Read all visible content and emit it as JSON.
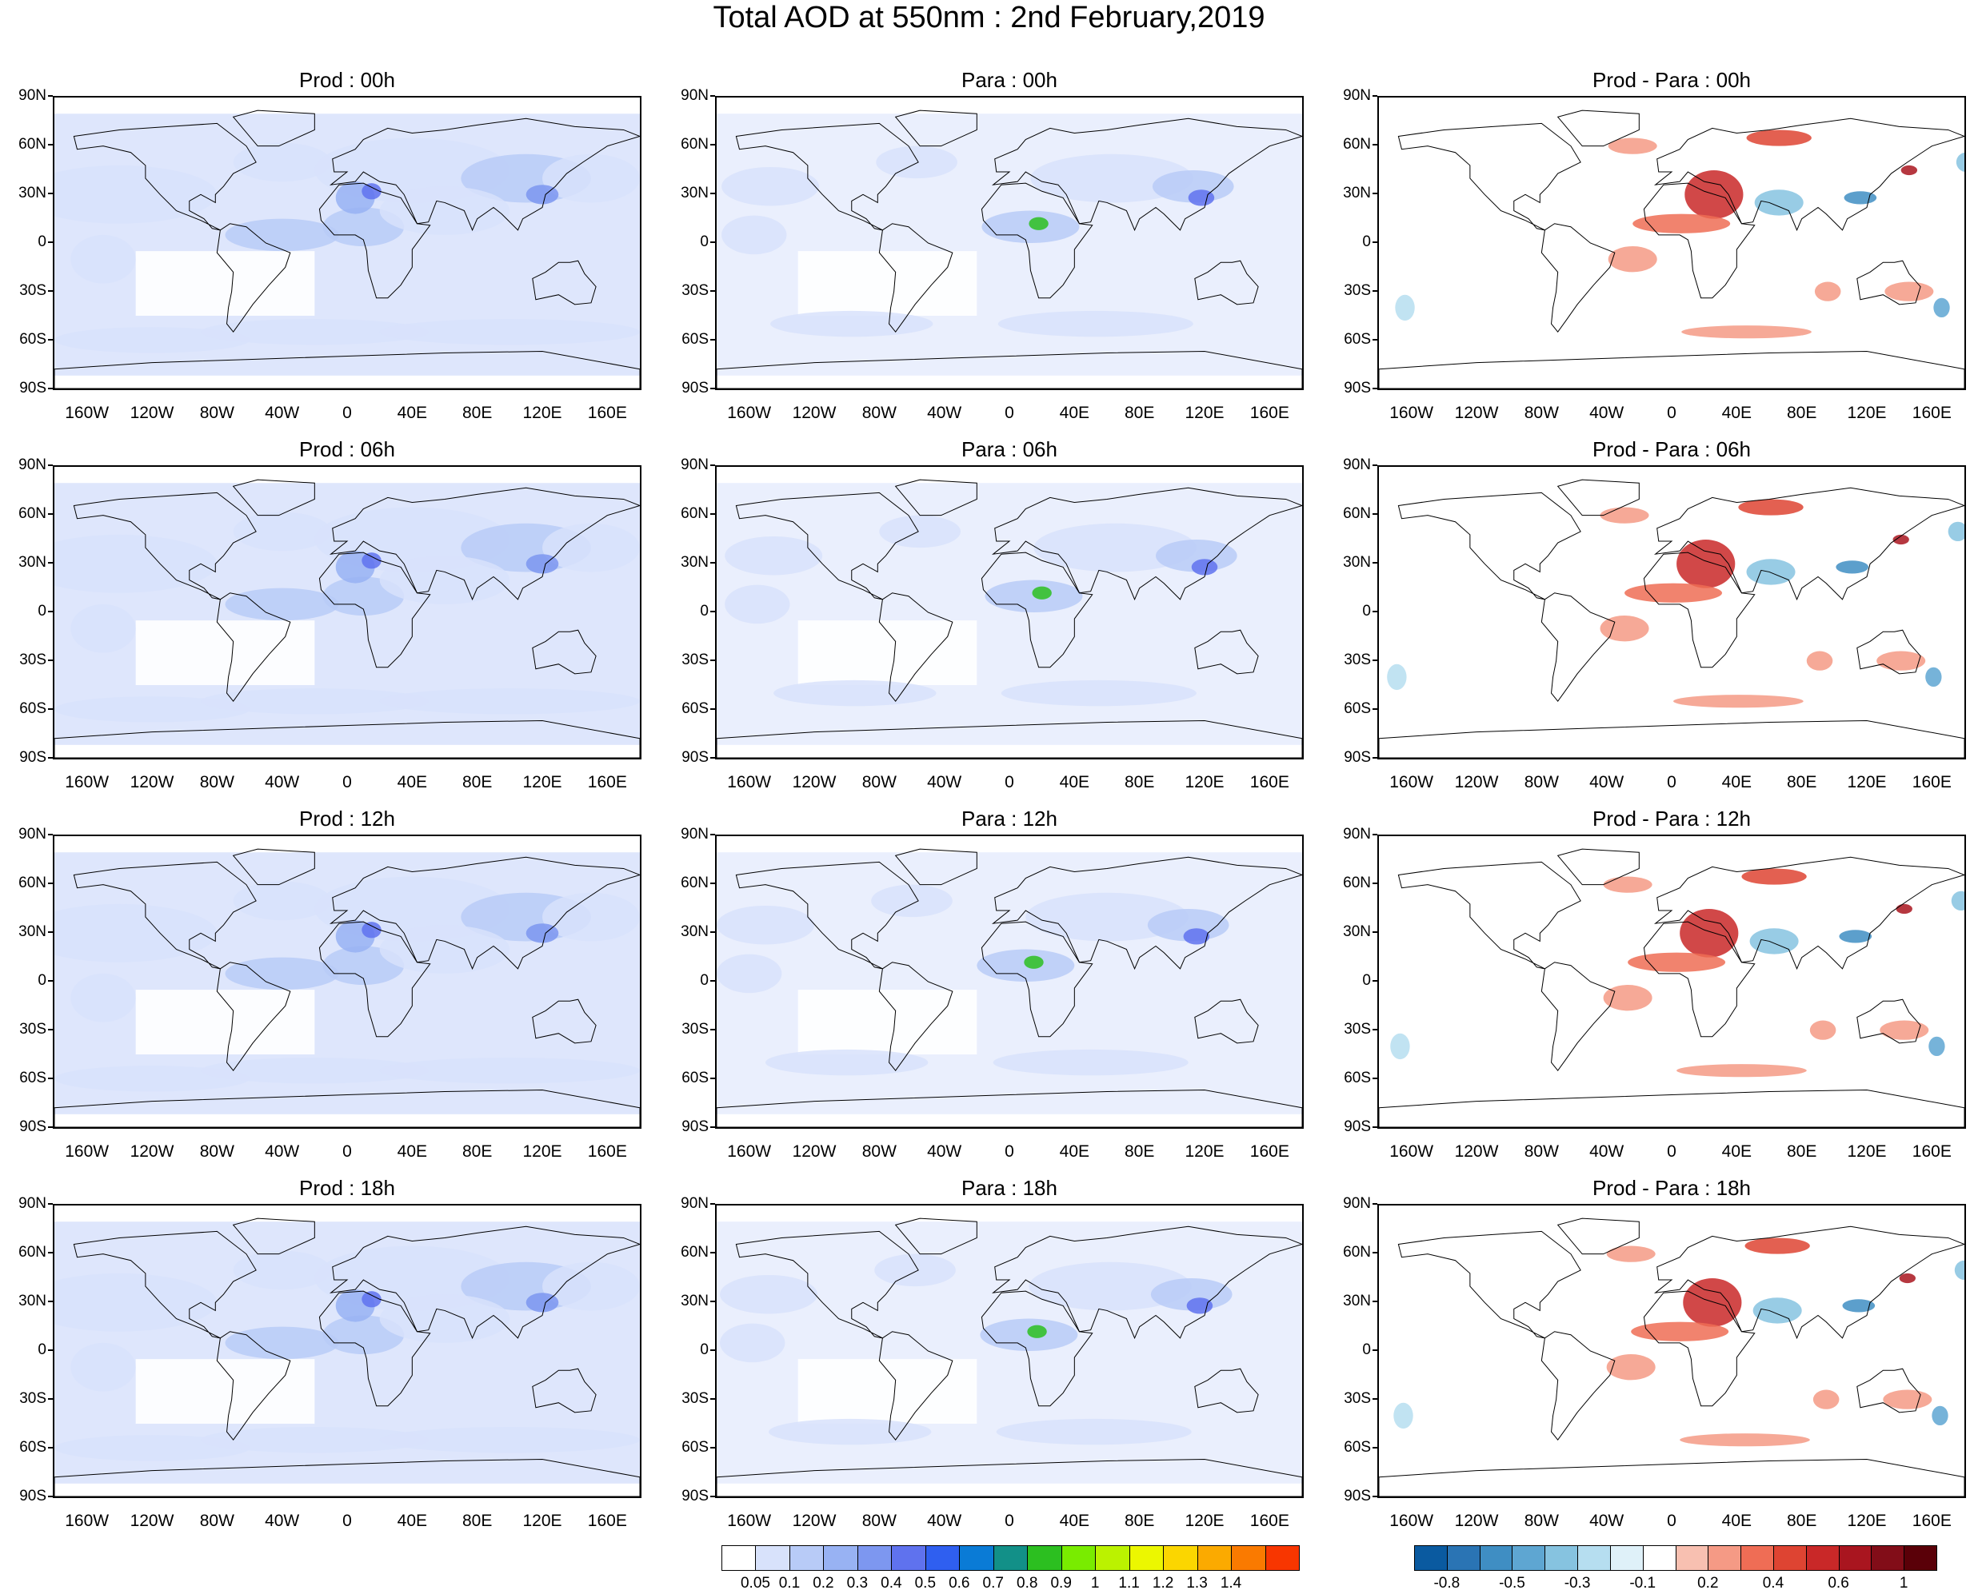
{
  "title": "Total AOD at 550nm : 2nd February,2019",
  "lat_labels": [
    "90N",
    "60N",
    "30N",
    "0",
    "30S",
    "60S",
    "90S"
  ],
  "lon_labels": [
    "160W",
    "120W",
    "80W",
    "40W",
    "0",
    "40E",
    "80E",
    "120E",
    "160E"
  ],
  "panels": [
    {
      "title": "Prod : 00h",
      "kind": "aod",
      "intensity": "moderate"
    },
    {
      "title": "Para : 00h",
      "kind": "aod",
      "intensity": "light"
    },
    {
      "title": "Prod - Para : 00h",
      "kind": "diff"
    },
    {
      "title": "Prod : 06h",
      "kind": "aod",
      "intensity": "moderate"
    },
    {
      "title": "Para : 06h",
      "kind": "aod",
      "intensity": "light"
    },
    {
      "title": "Prod - Para : 06h",
      "kind": "diff"
    },
    {
      "title": "Prod : 12h",
      "kind": "aod",
      "intensity": "moderate"
    },
    {
      "title": "Para : 12h",
      "kind": "aod",
      "intensity": "light"
    },
    {
      "title": "Prod - Para : 12h",
      "kind": "diff"
    },
    {
      "title": "Prod : 18h",
      "kind": "aod",
      "intensity": "moderate"
    },
    {
      "title": "Para : 18h",
      "kind": "aod",
      "intensity": "light"
    },
    {
      "title": "Prod - Para : 18h",
      "kind": "diff"
    }
  ],
  "aod_colorbar": {
    "colors": [
      "#ffffff",
      "#d8e2fb",
      "#b8cbf7",
      "#98b2f3",
      "#7d97f0",
      "#5f72ee",
      "#2f5ff0",
      "#0a7bd6",
      "#129088",
      "#2cbf20",
      "#79ec00",
      "#bbf200",
      "#ecf700",
      "#fbd600",
      "#fbaa00",
      "#fa7a00",
      "#f83600"
    ],
    "labels": [
      "0.05",
      "0.1",
      "0.2",
      "0.3",
      "0.4",
      "0.5",
      "0.6",
      "0.7",
      "0.8",
      "0.9",
      "1",
      "1.1",
      "1.2",
      "1.3",
      "1.4"
    ]
  },
  "diff_colorbar": {
    "colors": [
      "#0a5aa0",
      "#2a74b4",
      "#3f8ec3",
      "#5ea6d2",
      "#86c3e0",
      "#b6def0",
      "#dff1f9",
      "#ffffff",
      "#f8c0b1",
      "#f59a85",
      "#ef6d55",
      "#de4432",
      "#c92828",
      "#a9151f",
      "#820d18",
      "#5a0008"
    ],
    "labels": [
      "-0.8",
      "-0.5",
      "-0.3",
      "-0.1",
      "0.2",
      "0.4",
      "0.6",
      "1"
    ]
  }
}
